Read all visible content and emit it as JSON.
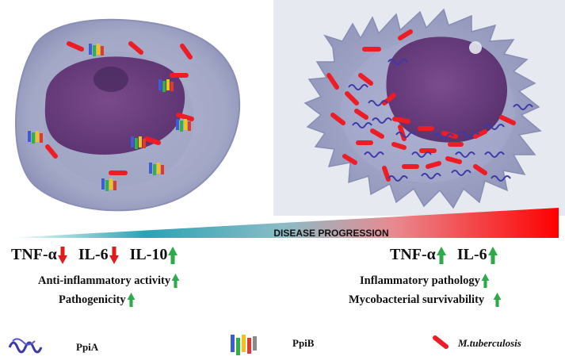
{
  "progression": {
    "label": "DISEASE PROGRESSION"
  },
  "left": {
    "cytokines": [
      {
        "name": "TNF-α",
        "direction": "down"
      },
      {
        "name": "IL-6",
        "direction": "down"
      },
      {
        "name": "IL-10",
        "direction": "up"
      }
    ],
    "effects": [
      {
        "text": "Anti-inflammatory activity",
        "direction": "up"
      },
      {
        "text": "Pathogenicity",
        "direction": "up"
      }
    ]
  },
  "right": {
    "cytokines": [
      {
        "name": "TNF-α",
        "direction": "up"
      },
      {
        "name": "IL-6",
        "direction": "up"
      }
    ],
    "effects": [
      {
        "text": "Inflammatory pathology",
        "direction": "up"
      },
      {
        "text": "Mycobacterial survivability",
        "direction": "up"
      }
    ]
  },
  "legend": {
    "ppia": {
      "label": "PpiA",
      "icon": "ppia-protein-icon"
    },
    "ppib": {
      "label": "PpiB",
      "icon": "ppib-protein-icon"
    },
    "mtb": {
      "label": "M.tuberculosis",
      "icon": "mtb-bacillus-icon"
    }
  },
  "colors": {
    "up_arrow": "#2eaa4a",
    "down_arrow": "#e01b1b",
    "bacillus": "#ee1c24",
    "wedge_start": "#2aa3b4",
    "wedge_end": "#ff0000",
    "cell_cytoplasm": "#a7abc9",
    "nucleus": "#6b3f7c"
  }
}
